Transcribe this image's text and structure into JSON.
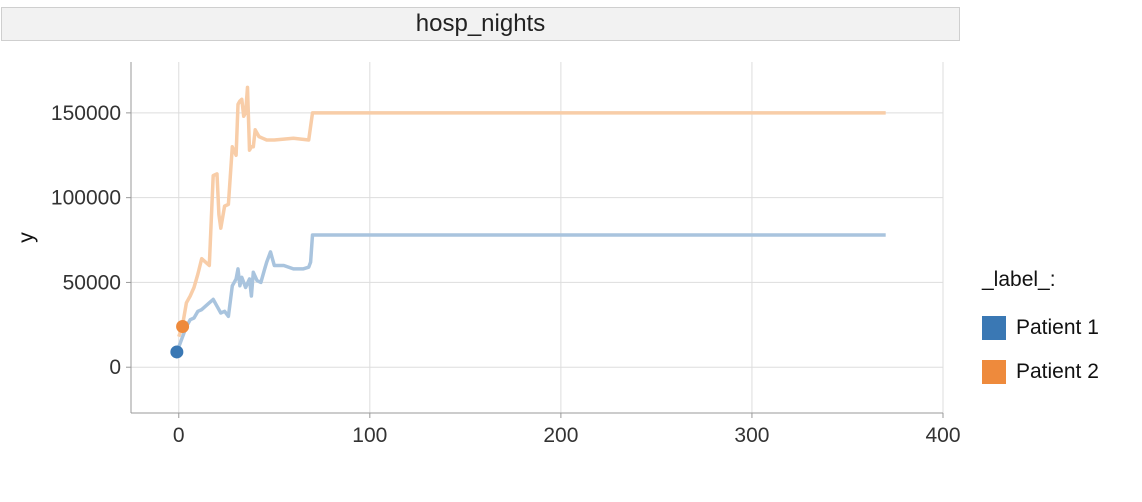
{
  "header": {
    "title": "hosp_nights"
  },
  "chart_data": {
    "type": "line",
    "title": "",
    "xlabel": "",
    "ylabel": "y",
    "xlim": [
      -25,
      400
    ],
    "ylim": [
      -27000,
      180000
    ],
    "xticks": [
      0,
      100,
      200,
      300,
      400
    ],
    "yticks": [
      0,
      50000,
      100000,
      150000
    ],
    "grid": true,
    "legend": {
      "title": "_label_:",
      "placement": "right"
    },
    "series": [
      {
        "name": "Patient 1",
        "color": "#3a78b4",
        "line_color": "#a9c4de",
        "marker": {
          "x": -1,
          "y": 9000
        },
        "x": [
          -1,
          2,
          4,
          6,
          8,
          10,
          12,
          14,
          16,
          18,
          20,
          22,
          24,
          26,
          28,
          30,
          31,
          32,
          33,
          35,
          37,
          38,
          39,
          41,
          43,
          45,
          46,
          48,
          50,
          55,
          60,
          65,
          68,
          69,
          70,
          80,
          100,
          200,
          300,
          370
        ],
        "y": [
          9000,
          18000,
          24000,
          28000,
          29000,
          33000,
          34000,
          36000,
          38000,
          40000,
          36000,
          32000,
          33000,
          30000,
          48000,
          52000,
          58000,
          48000,
          53000,
          47000,
          52000,
          42000,
          56000,
          51000,
          50000,
          58000,
          62000,
          68000,
          60000,
          60000,
          58000,
          58000,
          59000,
          62000,
          78000,
          78000,
          78000,
          78000,
          78000,
          78000
        ]
      },
      {
        "name": "Patient 2",
        "color": "#ee8a3c",
        "line_color": "#f8cda8",
        "marker": {
          "x": 2,
          "y": 24000
        },
        "x": [
          0,
          2,
          4,
          6,
          8,
          10,
          12,
          14,
          16,
          18,
          20,
          21,
          22,
          24,
          26,
          28,
          30,
          31,
          32,
          33,
          34,
          35,
          36,
          37,
          38,
          39,
          40,
          42,
          44,
          46,
          50,
          60,
          68,
          70,
          71,
          80,
          100,
          200,
          300,
          370
        ],
        "y": [
          18000,
          25000,
          38000,
          42000,
          47000,
          55000,
          64000,
          62000,
          60000,
          113000,
          114000,
          90000,
          82000,
          95000,
          96000,
          130000,
          125000,
          155000,
          157000,
          158000,
          148000,
          150000,
          165000,
          128000,
          130000,
          130000,
          140000,
          136000,
          135000,
          134000,
          134000,
          135000,
          134000,
          150000,
          150000,
          150000,
          150000,
          150000,
          150000,
          150000
        ]
      }
    ]
  }
}
